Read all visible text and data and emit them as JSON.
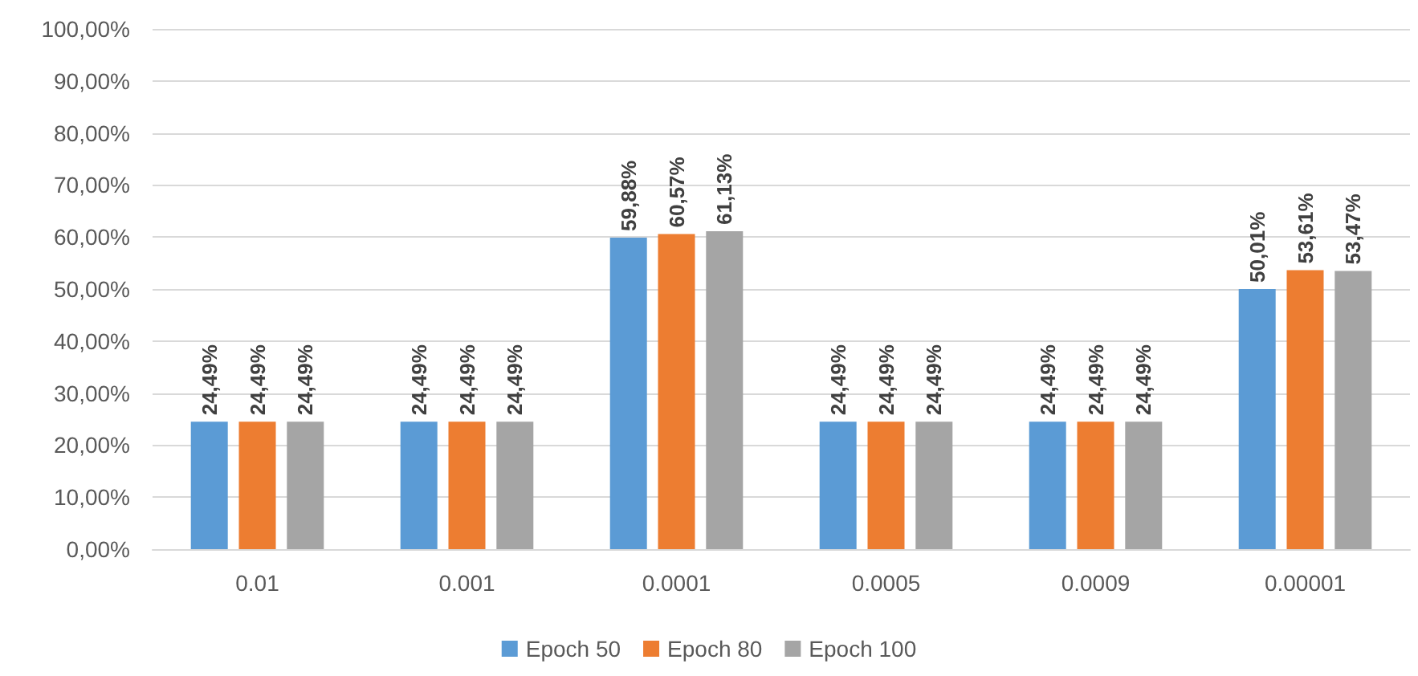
{
  "chart_data": {
    "type": "bar",
    "categories": [
      "0.01",
      "0.001",
      "0.0001",
      "0.0005",
      "0.0009",
      "0.00001"
    ],
    "series": [
      {
        "name": "Epoch 50",
        "color": "#5b9bd5",
        "values": [
          24.49,
          24.49,
          59.88,
          24.49,
          24.49,
          50.01
        ],
        "value_labels": [
          "24,49%",
          "24,49%",
          "59,88%",
          "24,49%",
          "24,49%",
          "50,01%"
        ]
      },
      {
        "name": "Epoch 80",
        "color": "#ed7d31",
        "values": [
          24.49,
          24.49,
          60.57,
          24.49,
          24.49,
          53.61
        ],
        "value_labels": [
          "24,49%",
          "24,49%",
          "60,57%",
          "24,49%",
          "24,49%",
          "53,61%"
        ]
      },
      {
        "name": "Epoch 100",
        "color": "#a5a5a5",
        "values": [
          24.49,
          24.49,
          61.13,
          24.49,
          24.49,
          53.47
        ],
        "value_labels": [
          "24,49%",
          "24,49%",
          "61,13%",
          "24,49%",
          "24,49%",
          "53,47%"
        ]
      }
    ],
    "ylim": [
      0,
      100
    ],
    "yticks": [
      {
        "value": 0,
        "label": "0,00%"
      },
      {
        "value": 10,
        "label": "10,00%"
      },
      {
        "value": 20,
        "label": "20,00%"
      },
      {
        "value": 30,
        "label": "30,00%"
      },
      {
        "value": 40,
        "label": "40,00%"
      },
      {
        "value": 50,
        "label": "50,00%"
      },
      {
        "value": 60,
        "label": "60,00%"
      },
      {
        "value": 70,
        "label": "70,00%"
      },
      {
        "value": 80,
        "label": "80,00%"
      },
      {
        "value": 90,
        "label": "90,00%"
      },
      {
        "value": 100,
        "label": "100,00%"
      }
    ],
    "grid": "y",
    "legend": "bottom"
  }
}
